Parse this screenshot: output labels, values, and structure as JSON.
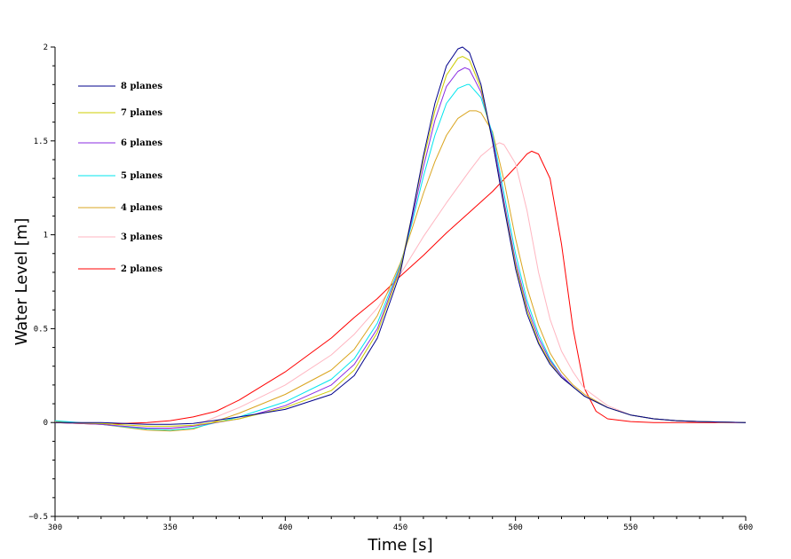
{
  "chart_data": {
    "type": "line",
    "xlabel": "Time [s]",
    "ylabel": "Water Level [m]",
    "xlim": [
      300,
      600
    ],
    "ylim": [
      -0.5,
      2
    ],
    "xticks": [
      300,
      350,
      400,
      450,
      500,
      550,
      600
    ],
    "xtick_labels": [
      "300",
      "350",
      "400",
      "450",
      "500",
      "550",
      "600"
    ],
    "yticks": [
      -0.5,
      0,
      0.5,
      1,
      1.5,
      2
    ],
    "ytick_labels": [
      "−0.5",
      "0",
      "0.5",
      "1",
      "1.5",
      "2"
    ],
    "grid": false,
    "legend_position": "top-left",
    "series": [
      {
        "name": "8 planes",
        "color": "#00008b",
        "x": [
          300,
          320,
          340,
          350,
          360,
          380,
          400,
          420,
          430,
          440,
          450,
          455,
          460,
          465,
          470,
          475,
          477,
          480,
          485,
          490,
          495,
          500,
          505,
          510,
          515,
          520,
          525,
          530,
          540,
          550,
          560,
          570,
          580,
          600
        ],
        "y": [
          0.0,
          0.0,
          -0.01,
          -0.01,
          -0.005,
          0.03,
          0.07,
          0.15,
          0.25,
          0.45,
          0.8,
          1.1,
          1.42,
          1.7,
          1.9,
          1.99,
          2.0,
          1.97,
          1.8,
          1.5,
          1.15,
          0.82,
          0.58,
          0.42,
          0.31,
          0.24,
          0.19,
          0.14,
          0.08,
          0.04,
          0.02,
          0.01,
          0.005,
          0.0
        ]
      },
      {
        "name": "7 planes",
        "color": "#cccc00",
        "x": [
          300,
          320,
          340,
          350,
          360,
          380,
          400,
          420,
          430,
          440,
          450,
          455,
          460,
          465,
          470,
          475,
          477,
          480,
          485,
          490,
          495,
          500,
          505,
          510,
          515,
          520,
          525,
          530,
          540,
          550,
          560,
          570,
          580,
          600
        ],
        "y": [
          0.0,
          -0.005,
          -0.02,
          -0.02,
          -0.015,
          0.02,
          0.08,
          0.17,
          0.28,
          0.48,
          0.82,
          1.1,
          1.4,
          1.66,
          1.85,
          1.94,
          1.95,
          1.93,
          1.78,
          1.5,
          1.16,
          0.84,
          0.6,
          0.43,
          0.32,
          0.24,
          0.19,
          0.14,
          0.08,
          0.04,
          0.02,
          0.01,
          0.005,
          0.0
        ]
      },
      {
        "name": "6 planes",
        "color": "#8a2be2",
        "x": [
          300,
          320,
          340,
          350,
          360,
          380,
          400,
          420,
          430,
          440,
          450,
          455,
          460,
          465,
          470,
          475,
          478,
          480,
          485,
          490,
          495,
          500,
          505,
          510,
          515,
          520,
          525,
          530,
          540,
          550,
          560,
          570,
          580,
          600
        ],
        "y": [
          0.0,
          -0.01,
          -0.03,
          -0.03,
          -0.02,
          0.02,
          0.09,
          0.2,
          0.31,
          0.5,
          0.83,
          1.08,
          1.36,
          1.61,
          1.79,
          1.87,
          1.89,
          1.88,
          1.76,
          1.52,
          1.18,
          0.86,
          0.62,
          0.45,
          0.33,
          0.25,
          0.19,
          0.14,
          0.08,
          0.04,
          0.02,
          0.01,
          0.005,
          0.0
        ]
      },
      {
        "name": "5 planes",
        "color": "#00e5ee",
        "x": [
          300,
          320,
          340,
          350,
          360,
          380,
          400,
          420,
          430,
          440,
          450,
          455,
          460,
          465,
          470,
          475,
          479,
          480,
          485,
          490,
          495,
          500,
          505,
          510,
          515,
          520,
          525,
          530,
          540,
          550,
          560,
          570,
          580,
          600
        ],
        "y": [
          0.01,
          -0.01,
          -0.035,
          -0.04,
          -0.03,
          0.03,
          0.11,
          0.23,
          0.34,
          0.53,
          0.84,
          1.06,
          1.31,
          1.53,
          1.7,
          1.78,
          1.8,
          1.8,
          1.73,
          1.54,
          1.22,
          0.9,
          0.65,
          0.47,
          0.34,
          0.25,
          0.19,
          0.14,
          0.08,
          0.04,
          0.02,
          0.01,
          0.005,
          0.0
        ]
      },
      {
        "name": "4 planes",
        "color": "#daa520",
        "x": [
          300,
          320,
          340,
          350,
          360,
          380,
          400,
          420,
          430,
          440,
          450,
          455,
          460,
          465,
          470,
          475,
          480,
          483,
          485,
          490,
          495,
          500,
          505,
          510,
          515,
          520,
          525,
          530,
          540,
          550,
          560,
          570,
          580,
          600
        ],
        "y": [
          0.005,
          -0.01,
          -0.04,
          -0.045,
          -0.035,
          0.05,
          0.15,
          0.28,
          0.39,
          0.57,
          0.85,
          1.03,
          1.22,
          1.39,
          1.53,
          1.62,
          1.66,
          1.66,
          1.65,
          1.55,
          1.29,
          0.98,
          0.72,
          0.52,
          0.37,
          0.27,
          0.2,
          0.15,
          0.08,
          0.04,
          0.02,
          0.01,
          0.005,
          0.0
        ]
      },
      {
        "name": "3 planes",
        "color": "#ffb6c1",
        "x": [
          300,
          320,
          340,
          350,
          360,
          380,
          400,
          420,
          430,
          440,
          450,
          460,
          470,
          480,
          485,
          490,
          493,
          495,
          500,
          505,
          510,
          515,
          520,
          525,
          530,
          540,
          550,
          560,
          570,
          580,
          600
        ],
        "y": [
          0.005,
          -0.01,
          -0.03,
          -0.035,
          -0.02,
          0.08,
          0.2,
          0.36,
          0.47,
          0.61,
          0.79,
          0.99,
          1.17,
          1.34,
          1.42,
          1.47,
          1.49,
          1.48,
          1.38,
          1.13,
          0.8,
          0.55,
          0.38,
          0.27,
          0.18,
          0.09,
          0.04,
          0.02,
          0.01,
          0.005,
          0.0
        ]
      },
      {
        "name": "2 planes",
        "color": "#ff0000",
        "x": [
          300,
          320,
          330,
          340,
          350,
          360,
          370,
          380,
          400,
          420,
          430,
          440,
          450,
          460,
          470,
          480,
          490,
          500,
          505,
          507,
          510,
          515,
          520,
          525,
          530,
          535,
          540,
          550,
          560,
          580,
          600
        ],
        "y": [
          0.0,
          -0.01,
          -0.005,
          0.0,
          0.01,
          0.03,
          0.06,
          0.12,
          0.27,
          0.45,
          0.56,
          0.66,
          0.78,
          0.89,
          1.01,
          1.12,
          1.23,
          1.36,
          1.43,
          1.445,
          1.43,
          1.3,
          0.95,
          0.5,
          0.18,
          0.06,
          0.02,
          0.005,
          0.0,
          0.0,
          0.0
        ]
      }
    ]
  }
}
